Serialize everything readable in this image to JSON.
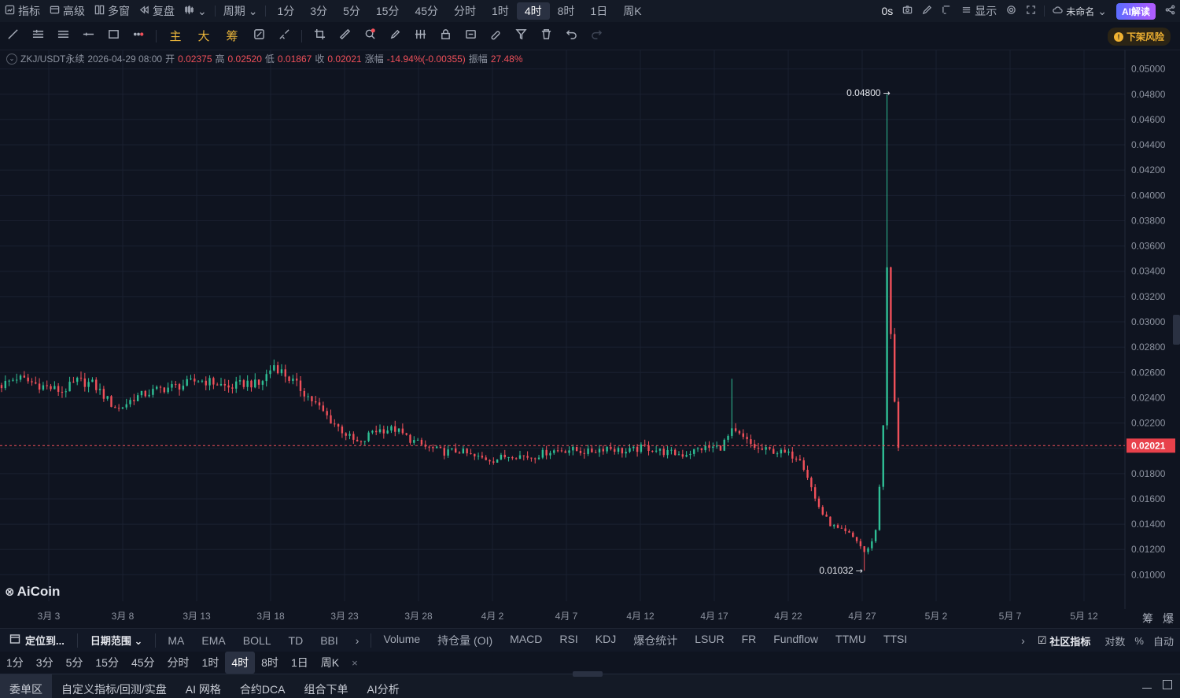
{
  "topbar": {
    "left_items": [
      {
        "label": "指标",
        "icon": "chart-box-icon"
      },
      {
        "label": "高级",
        "icon": "window-icon"
      },
      {
        "label": "多窗",
        "icon": "grid-icon"
      },
      {
        "label": "复盘",
        "icon": "rewind-icon"
      }
    ],
    "chart_type_icon": "candlestick-icon",
    "period_menu": "周期",
    "periods": [
      "1分",
      "3分",
      "5分",
      "15分",
      "45分",
      "分时",
      "1时",
      "4时",
      "8时",
      "1日",
      "周K"
    ],
    "active_period": "4时",
    "right": {
      "countdown": "0s",
      "display_label": "显示",
      "workspace": "未命名",
      "ai_button": "AI解读"
    }
  },
  "drawbar": {
    "tools": [
      "trend-line-icon",
      "horizontal-lines-icon",
      "parallel-lines-icon",
      "ray-icon",
      "rectangle-icon",
      "more-dots-icon"
    ],
    "gold_labels": [
      "主",
      "大",
      "筹"
    ],
    "tools2": [
      "chart-refresh-icon",
      "measure-icon",
      "crop-icon",
      "ruler-icon",
      "magnet-zoom-icon",
      "brush-icon",
      "bars-icon",
      "lock-icon",
      "eye-lock-icon",
      "eraser-link-icon",
      "filter-icon",
      "trash-icon",
      "undo-icon",
      "redo-icon"
    ],
    "risk_label": "下架风险"
  },
  "legend": {
    "symbol": "ZKJ/USDT永续",
    "datetime": "2026-04-29 08:00",
    "open_label": "开",
    "open": "0.02375",
    "high_label": "高",
    "high": "0.02520",
    "low_label": "低",
    "low": "0.01867",
    "close_label": "收",
    "close": "0.02021",
    "change_label": "涨幅",
    "change": "-14.94%(-0.00355)",
    "amplitude_label": "振幅",
    "amplitude": "27.48%"
  },
  "watermark": "AiCoin",
  "chart_data": {
    "type": "candlestick",
    "ylim": [
      0.0094,
      0.0506
    ],
    "y_ticks": [
      "0.05000",
      "0.04800",
      "0.04600",
      "0.04400",
      "0.04200",
      "0.04000",
      "0.03800",
      "0.03600",
      "0.03400",
      "0.03200",
      "0.03000",
      "0.02800",
      "0.02600",
      "0.02400",
      "0.02200",
      "0.02000",
      "0.01800",
      "0.01600",
      "0.01400",
      "0.01200",
      "0.01000"
    ],
    "x_ticks": [
      "3月 3",
      "3月 8",
      "3月 13",
      "3月 18",
      "3月 23",
      "3月 28",
      "4月 2",
      "4月 7",
      "4月 12",
      "4月 17",
      "4月 22",
      "4月 27",
      "5月 2",
      "5月 7",
      "5月 12"
    ],
    "last_price": "0.02021",
    "max_annotation": "0.04800",
    "min_annotation": "0.01032",
    "up_color": "#2fbf95",
    "down_color": "#f0505a",
    "anchors": [
      [
        0,
        0.025
      ],
      [
        4,
        0.0256
      ],
      [
        10,
        0.025
      ],
      [
        16,
        0.0245
      ],
      [
        20,
        0.0253
      ],
      [
        24,
        0.0251
      ],
      [
        26,
        0.0245
      ],
      [
        29,
        0.0235
      ],
      [
        31,
        0.0231
      ],
      [
        35,
        0.024
      ],
      [
        42,
        0.0247
      ],
      [
        48,
        0.025
      ],
      [
        52,
        0.0254
      ],
      [
        56,
        0.0252
      ],
      [
        60,
        0.0248
      ],
      [
        65,
        0.0252
      ],
      [
        68,
        0.025
      ],
      [
        70,
        0.0258
      ],
      [
        72,
        0.0266
      ],
      [
        75,
        0.0258
      ],
      [
        78,
        0.025
      ],
      [
        81,
        0.0241
      ],
      [
        84,
        0.0232
      ],
      [
        87,
        0.0222
      ],
      [
        90,
        0.0214
      ],
      [
        93,
        0.0206
      ],
      [
        95,
        0.0203
      ],
      [
        98,
        0.0214
      ],
      [
        102,
        0.0215
      ],
      [
        104,
        0.0215
      ],
      [
        108,
        0.0207
      ],
      [
        112,
        0.0201
      ],
      [
        117,
        0.0197
      ],
      [
        121,
        0.0198
      ],
      [
        125,
        0.0193
      ],
      [
        130,
        0.0191
      ],
      [
        135,
        0.0195
      ],
      [
        140,
        0.0193
      ],
      [
        145,
        0.0198
      ],
      [
        150,
        0.0199
      ],
      [
        155,
        0.0197
      ],
      [
        160,
        0.0201
      ],
      [
        165,
        0.0197
      ],
      [
        170,
        0.0201
      ],
      [
        175,
        0.0197
      ],
      [
        180,
        0.0195
      ],
      [
        185,
        0.02
      ],
      [
        190,
        0.0201
      ],
      [
        193,
        0.0213
      ],
      [
        195,
        0.021
      ],
      [
        198,
        0.0203
      ],
      [
        200,
        0.0199
      ],
      [
        204,
        0.0198
      ],
      [
        208,
        0.0195
      ],
      [
        211,
        0.0193
      ],
      [
        213,
        0.0178
      ],
      [
        215,
        0.016
      ],
      [
        217,
        0.0148
      ],
      [
        219,
        0.014
      ],
      [
        221,
        0.0136
      ],
      [
        224,
        0.0132
      ],
      [
        226,
        0.0127
      ],
      [
        228,
        0.0118
      ],
      [
        229,
        0.012
      ],
      [
        231,
        0.0135
      ],
      [
        232,
        0.017
      ],
      [
        233,
        0.022
      ],
      [
        234,
        0.034
      ],
      [
        235,
        0.029
      ],
      [
        236,
        0.0235
      ],
      [
        237,
        0.0202
      ]
    ],
    "spikes": [
      {
        "index": 193,
        "high": 0.0255
      },
      {
        "index": 234,
        "high": 0.048
      },
      {
        "index": 228,
        "low": 0.01032
      }
    ]
  },
  "indicator_bar": {
    "locate_button": "定位到...",
    "date_range_button": "日期范围",
    "main_indicators": [
      "MA",
      "EMA",
      "BOLL",
      "TD",
      "BBI"
    ],
    "sub_indicators": [
      "Volume",
      "持仓量 (OI)",
      "MACD",
      "RSI",
      "KDJ",
      "爆仓统计",
      "LSUR",
      "FR",
      "Fundflow",
      "TTMU",
      "TTSI"
    ],
    "community_label": "社区指标",
    "right_labels": [
      "对数",
      "%",
      "自动"
    ],
    "axis_corner_labels": [
      "筹",
      "爆"
    ]
  },
  "period_bar": {
    "periods": [
      "1分",
      "3分",
      "5分",
      "15分",
      "45分",
      "分时",
      "1时",
      "4时",
      "8时",
      "1日",
      "周K"
    ],
    "active": "4时",
    "close": "×"
  },
  "bottom_tabs": {
    "tabs": [
      "委单区",
      "自定义指标/回测/实盘",
      "AI 网格",
      "合约DCA",
      "组合下单",
      "AI分析"
    ],
    "active": "委单区"
  }
}
